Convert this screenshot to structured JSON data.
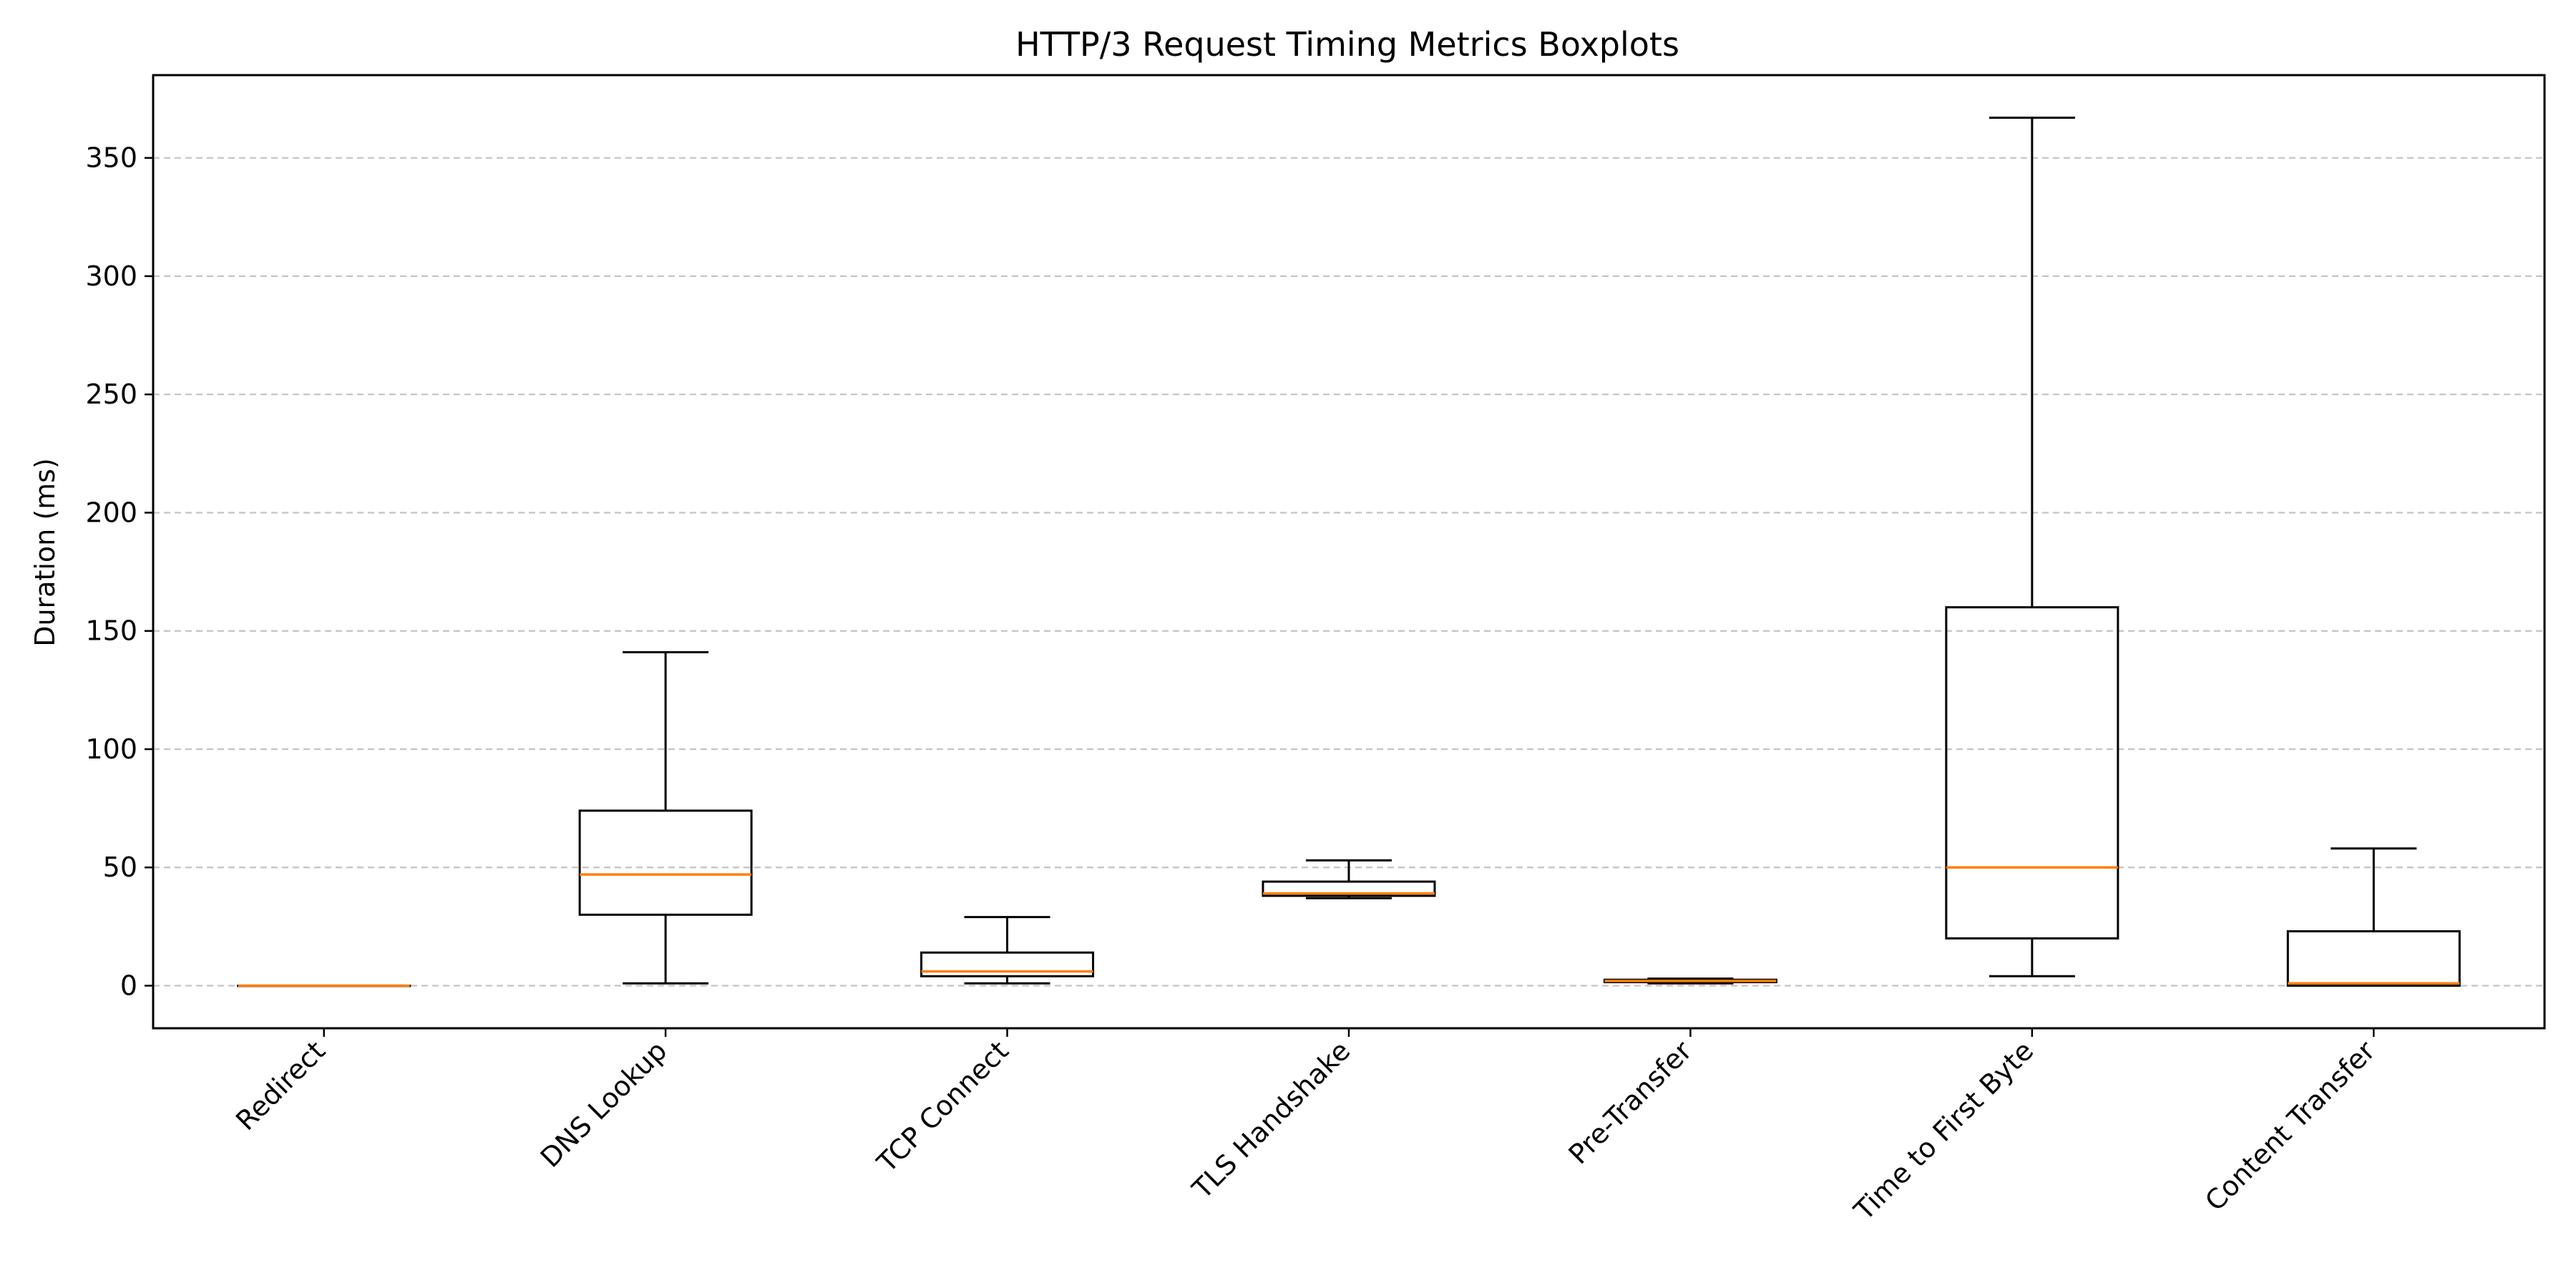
{
  "chart_data": {
    "type": "boxplot",
    "title": "HTTP/3 Request Timing Metrics Boxplots",
    "xlabel": "",
    "ylabel": "Duration (ms)",
    "ylim": [
      -18,
      385
    ],
    "yticks": [
      0,
      50,
      100,
      150,
      200,
      250,
      300,
      350
    ],
    "grid": "y-dashed",
    "colors": {
      "box": "#000000",
      "median": "#ff7f0e",
      "grid": "#b0b0b0"
    },
    "categories": [
      "Redirect",
      "DNS Lookup",
      "TCP Connect",
      "TLS Handshake",
      "Pre-Transfer",
      "Time to First Byte",
      "Content Transfer"
    ],
    "boxes": [
      {
        "label": "Redirect",
        "whisker_low": 0,
        "q1": 0,
        "median": 0,
        "q3": 0,
        "whisker_high": 0
      },
      {
        "label": "DNS Lookup",
        "whisker_low": 1,
        "q1": 30,
        "median": 47,
        "q3": 74,
        "whisker_high": 141
      },
      {
        "label": "TCP Connect",
        "whisker_low": 1,
        "q1": 4,
        "median": 6,
        "q3": 14,
        "whisker_high": 29
      },
      {
        "label": "TLS Handshake",
        "whisker_low": 37,
        "q1": 38,
        "median": 39,
        "q3": 44,
        "whisker_high": 53
      },
      {
        "label": "Pre-Transfer",
        "whisker_low": 1,
        "q1": 1.5,
        "median": 2,
        "q3": 2.5,
        "whisker_high": 3
      },
      {
        "label": "Time to First Byte",
        "whisker_low": 4,
        "q1": 20,
        "median": 50,
        "q3": 160,
        "whisker_high": 367
      },
      {
        "label": "Content Transfer",
        "whisker_low": 0,
        "q1": 0,
        "median": 1,
        "q3": 23,
        "whisker_high": 58
      }
    ]
  }
}
